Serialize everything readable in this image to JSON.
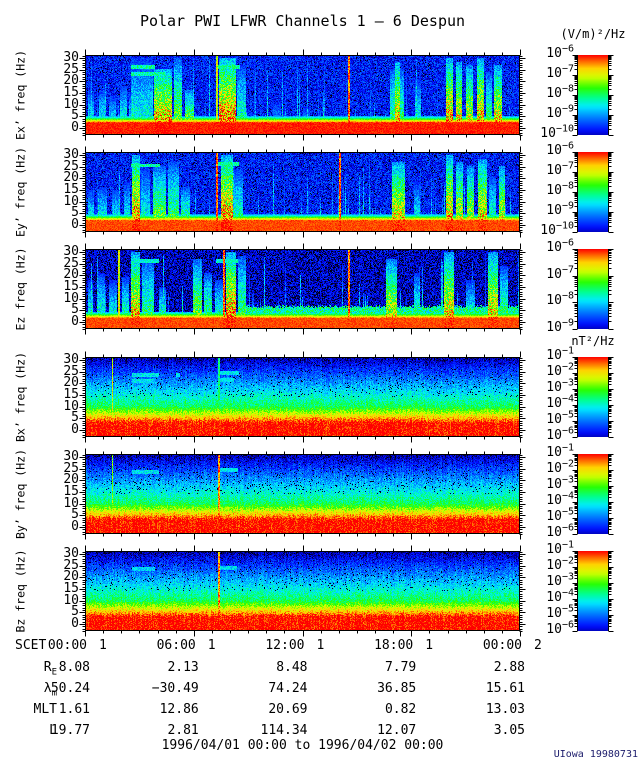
{
  "title": "Polar PWI LFWR Channels 1 — 6 Despun",
  "credit": "UIowa 19980731",
  "time_range_label": "1996/04/01 00:00 to 1996/04/02 00:00",
  "colors": {
    "background": "#ffffff",
    "foreground": "#000000",
    "credit_text": "#1b1b6b",
    "rainbow": [
      [
        "0.00",
        "#000000"
      ],
      [
        "0.06",
        "#00008c"
      ],
      [
        "0.15",
        "#000aff"
      ],
      [
        "0.30",
        "#0082ff"
      ],
      [
        "0.42",
        "#00ebff"
      ],
      [
        "0.52",
        "#00ff8c"
      ],
      [
        "0.63",
        "#28ff00"
      ],
      [
        "0.75",
        "#d2ff00"
      ],
      [
        "0.85",
        "#ffd200"
      ],
      [
        "0.93",
        "#ff6400"
      ],
      [
        "1.00",
        "#ff0000"
      ]
    ]
  },
  "chart_data": {
    "type": "heatmap",
    "subtype": "spectrogram-stack",
    "x_axis": {
      "label": "SCET",
      "start": "1996/04/01 00:00",
      "end": "1996/04/02 00:00",
      "major_step_hours": 6,
      "minor_step_hours": 1,
      "major_ticks": [
        {
          "time": "00:00",
          "day": "1"
        },
        {
          "time": "06:00",
          "day": "1"
        },
        {
          "time": "12:00",
          "day": "1"
        },
        {
          "time": "18:00",
          "day": "1"
        },
        {
          "time": "00:00",
          "day": "2"
        }
      ]
    },
    "y_axis": {
      "unit": "Hz",
      "range": [
        0,
        30
      ],
      "ticks": [
        0,
        5,
        10,
        15,
        20,
        25,
        30
      ]
    },
    "panels": [
      {
        "id": "ex",
        "label": "Ex’ freq (Hz)",
        "quantity": "electric-field",
        "colorbar_unit": "(V/m)²/Hz",
        "colorbar_exponents": [
          -6,
          -7,
          -8,
          -9,
          -10
        ],
        "seed": 101,
        "render": {
          "gradient": false,
          "bg": [
            0.17,
            0.11,
            0.035
          ],
          "bottom": [
            2.2,
            1.0
          ],
          "wisp": 0.16,
          "bursts": [
            [
              0.005,
              0.02,
              0.5,
              0.5
            ],
            [
              0.03,
              0.045,
              0.55,
              0.5
            ],
            [
              0.055,
              0.07,
              0.45,
              0.48
            ],
            [
              0.08,
              0.095,
              0.6,
              0.52
            ],
            [
              0.1,
              0.115,
              0.5,
              0.48
            ],
            [
              0.105,
              0.155,
              1.0,
              0.5
            ],
            [
              0.158,
              0.198,
              0.85,
              0.92
            ],
            [
              0.203,
              0.222,
              1.0,
              0.68
            ],
            [
              0.228,
              0.25,
              0.55,
              0.72
            ],
            [
              0.308,
              0.345,
              1.0,
              0.96
            ],
            [
              0.348,
              0.368,
              0.9,
              0.55
            ],
            [
              0.43,
              0.45,
              0.35,
              0.42
            ],
            [
              0.5,
              0.515,
              0.3,
              0.38
            ],
            [
              0.7,
              0.732,
              0.85,
              0.62
            ],
            [
              0.712,
              0.722,
              0.95,
              0.9
            ],
            [
              0.758,
              0.772,
              0.7,
              0.5
            ],
            [
              0.828,
              0.845,
              1.0,
              0.92
            ],
            [
              0.852,
              0.865,
              0.95,
              0.85
            ],
            [
              0.875,
              0.89,
              0.9,
              0.8
            ],
            [
              0.9,
              0.915,
              1.0,
              0.9
            ],
            [
              0.92,
              0.934,
              0.8,
              0.62
            ],
            [
              0.94,
              0.958,
              0.9,
              0.86
            ]
          ],
          "vlines": [
            [
              0.303,
              0.8
            ],
            [
              0.605,
              0.95
            ]
          ],
          "hdashes": [
            [
              0.105,
              0.16,
              26,
              0.5
            ],
            [
              0.105,
              0.185,
              23,
              0.5
            ],
            [
              0.3,
              0.355,
              26,
              0.5
            ]
          ],
          "hband": null
        }
      },
      {
        "id": "ey",
        "label": "Ey’ freq (Hz)",
        "quantity": "electric-field",
        "colorbar_unit": "(V/m)²/Hz",
        "colorbar_exponents": [
          -6,
          -7,
          -8,
          -9,
          -10
        ],
        "seed": 202,
        "render": {
          "gradient": false,
          "bg": [
            0.17,
            0.11,
            0.05
          ],
          "bottom": [
            1.8,
            0.97
          ],
          "wisp": 0.15,
          "bursts": [
            [
              0.005,
              0.02,
              0.5,
              0.5
            ],
            [
              0.03,
              0.05,
              0.55,
              0.5
            ],
            [
              0.06,
              0.078,
              0.5,
              0.48
            ],
            [
              0.088,
              0.103,
              0.6,
              0.5
            ],
            [
              0.108,
              0.125,
              1.0,
              0.95
            ],
            [
              0.128,
              0.148,
              0.8,
              0.5
            ],
            [
              0.155,
              0.185,
              0.85,
              0.68
            ],
            [
              0.19,
              0.215,
              0.9,
              0.62
            ],
            [
              0.22,
              0.24,
              0.55,
              0.6
            ],
            [
              0.312,
              0.338,
              1.0,
              0.95
            ],
            [
              0.342,
              0.362,
              0.8,
              0.55
            ],
            [
              0.705,
              0.735,
              0.9,
              0.85
            ],
            [
              0.755,
              0.77,
              0.6,
              0.5
            ],
            [
              0.828,
              0.845,
              1.0,
              0.9
            ],
            [
              0.852,
              0.868,
              0.9,
              0.8
            ],
            [
              0.878,
              0.893,
              0.85,
              0.76
            ],
            [
              0.902,
              0.922,
              0.95,
              0.86
            ],
            [
              0.928,
              0.944,
              0.7,
              0.55
            ],
            [
              0.95,
              0.965,
              0.85,
              0.8
            ]
          ],
          "vlines": [
            [
              0.302,
              0.98
            ],
            [
              0.585,
              0.98
            ]
          ],
          "hdashes": [
            [
              0.105,
              0.172,
              25.5,
              0.5
            ],
            [
              0.3,
              0.352,
              26,
              0.5
            ]
          ],
          "hband": null
        }
      },
      {
        "id": "ez",
        "label": "Ez freq (Hz)",
        "quantity": "electric-field",
        "colorbar_unit": "(V/m)²/Hz",
        "colorbar_exponents": [
          -6,
          -7,
          -8,
          -9
        ],
        "seed": 303,
        "render": {
          "gradient": false,
          "bg": [
            0.12,
            0.1,
            0.16
          ],
          "bottom": [
            1.6,
            0.97
          ],
          "wisp": 0.12,
          "bursts": [
            [
              0.005,
              0.018,
              0.6,
              0.5
            ],
            [
              0.028,
              0.045,
              0.7,
              0.52
            ],
            [
              0.055,
              0.072,
              0.6,
              0.5
            ],
            [
              0.085,
              0.1,
              0.65,
              0.55
            ],
            [
              0.105,
              0.125,
              1.0,
              0.88
            ],
            [
              0.13,
              0.158,
              0.9,
              0.6
            ],
            [
              0.168,
              0.185,
              0.5,
              0.55
            ],
            [
              0.248,
              0.268,
              0.9,
              0.7
            ],
            [
              0.272,
              0.29,
              0.7,
              0.62
            ],
            [
              0.298,
              0.318,
              0.6,
              0.55
            ],
            [
              0.322,
              0.345,
              1.0,
              0.95
            ],
            [
              0.35,
              0.37,
              0.95,
              0.62
            ],
            [
              0.69,
              0.715,
              0.9,
              0.8
            ],
            [
              0.755,
              0.77,
              0.7,
              0.55
            ],
            [
              0.825,
              0.848,
              1.0,
              0.86
            ],
            [
              0.875,
              0.895,
              0.6,
              0.5
            ],
            [
              0.925,
              0.948,
              1.0,
              0.86
            ],
            [
              0.952,
              0.972,
              0.8,
              0.6
            ]
          ],
          "vlines": [
            [
              0.077,
              0.8
            ],
            [
              0.318,
              0.98
            ],
            [
              0.605,
              0.95
            ]
          ],
          "hdashes": [
            [
              0.105,
              0.17,
              26,
              0.45
            ],
            [
              0.3,
              0.35,
              26,
              0.45
            ]
          ],
          "hband": [
            0.36,
            0.995,
            5,
            1.6,
            0.5
          ]
        }
      },
      {
        "id": "bx",
        "label": "Bx’ freq (Hz)",
        "quantity": "magnetic-field",
        "colorbar_unit": "nT²/Hz",
        "colorbar_exponents": [
          -1,
          -2,
          -3,
          -4,
          -5,
          -6
        ],
        "seed": 404,
        "render": {
          "gradient": true,
          "bg": [
            0,
            0,
            0
          ],
          "bottom": [
            0,
            0
          ],
          "wisp": 0,
          "bursts": [
            [
              0.2,
              0.225,
              0.4,
              0.28
            ]
          ],
          "vlines": [
            [
              0.062,
              0.78
            ],
            [
              0.306,
              0.55
            ]
          ],
          "hdashes": [
            [
              0.108,
              0.168,
              23.5,
              0.42
            ],
            [
              0.108,
              0.158,
              21,
              0.42
            ],
            [
              0.208,
              0.218,
              23.5,
              0.42
            ],
            [
              0.306,
              0.352,
              24.5,
              0.42
            ],
            [
              0.308,
              0.342,
              21.5,
              0.42
            ]
          ],
          "hband": null
        }
      },
      {
        "id": "by",
        "label": "By’ freq (Hz)",
        "quantity": "magnetic-field",
        "colorbar_unit": "nT²/Hz",
        "colorbar_exponents": [
          -1,
          -2,
          -3,
          -4,
          -5,
          -6
        ],
        "seed": 505,
        "render": {
          "gradient": true,
          "bg": [
            0,
            0,
            0
          ],
          "bottom": [
            0,
            0
          ],
          "wisp": 0,
          "bursts": [
            [
              0.185,
              0.215,
              0.45,
              0.3
            ]
          ],
          "vlines": [
            [
              0.062,
              0.72
            ],
            [
              0.306,
              0.92
            ]
          ],
          "hdashes": [
            [
              0.108,
              0.168,
              23.5,
              0.42
            ],
            [
              0.306,
              0.35,
              24.5,
              0.42
            ]
          ],
          "hband": null
        }
      },
      {
        "id": "bz",
        "label": "Bz freq (Hz)",
        "quantity": "magnetic-field",
        "colorbar_unit": "nT²/Hz",
        "colorbar_exponents": [
          -1,
          -2,
          -3,
          -4,
          -5,
          -6
        ],
        "seed": 606,
        "render": {
          "gradient": true,
          "bg": [
            0,
            0,
            0
          ],
          "bottom": [
            0,
            0
          ],
          "wisp": 0,
          "bursts": [],
          "vlines": [
            [
              0.306,
              0.92
            ]
          ],
          "hdashes": [
            [
              0.108,
              0.16,
              23.5,
              0.4
            ],
            [
              0.306,
              0.348,
              24,
              0.4
            ]
          ],
          "hband": null
        }
      }
    ]
  },
  "ephemeris": {
    "rows": [
      {
        "label": "R",
        "sub": "E",
        "values": [
          "8.08",
          "2.13",
          "8.48",
          "7.79",
          "2.88"
        ]
      },
      {
        "label": "λ",
        "sub": "m",
        "values": [
          "50.24",
          "−30.49",
          "74.24",
          "36.85",
          "15.61"
        ]
      },
      {
        "label": "MLT",
        "sub": "",
        "values": [
          "1.61",
          "12.86",
          "20.69",
          "0.82",
          "13.03"
        ]
      },
      {
        "label": "L",
        "sub": "",
        "values": [
          "19.77",
          "2.81",
          "114.34",
          "12.07",
          "3.05"
        ]
      }
    ]
  }
}
